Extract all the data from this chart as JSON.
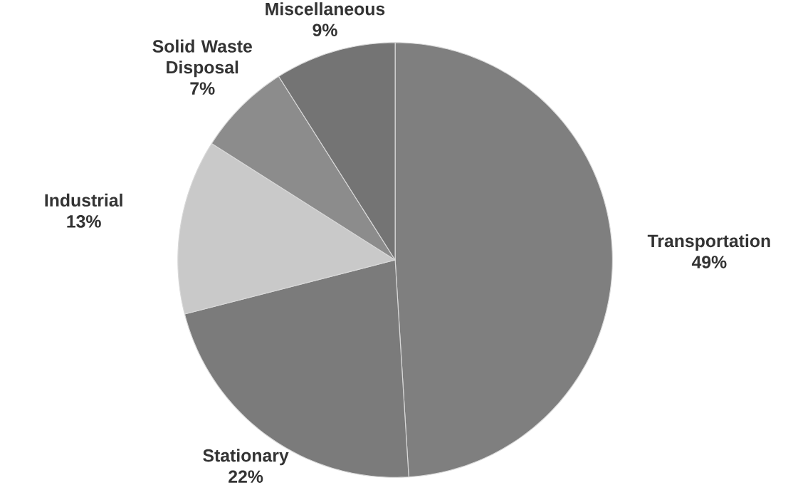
{
  "chart_data": {
    "type": "pie",
    "categories": [
      "Transportation",
      "Stationary",
      "Industrial",
      "Solid Waste Disposal",
      "Miscellaneous"
    ],
    "values": [
      49,
      22,
      13,
      7,
      9
    ],
    "value_labels": [
      "49%",
      "22%",
      "13%",
      "7%",
      "9%"
    ],
    "colors": [
      "#7f7f7f",
      "#7b7b7b",
      "#c9c9c9",
      "#8c8c8c",
      "#747474"
    ]
  }
}
